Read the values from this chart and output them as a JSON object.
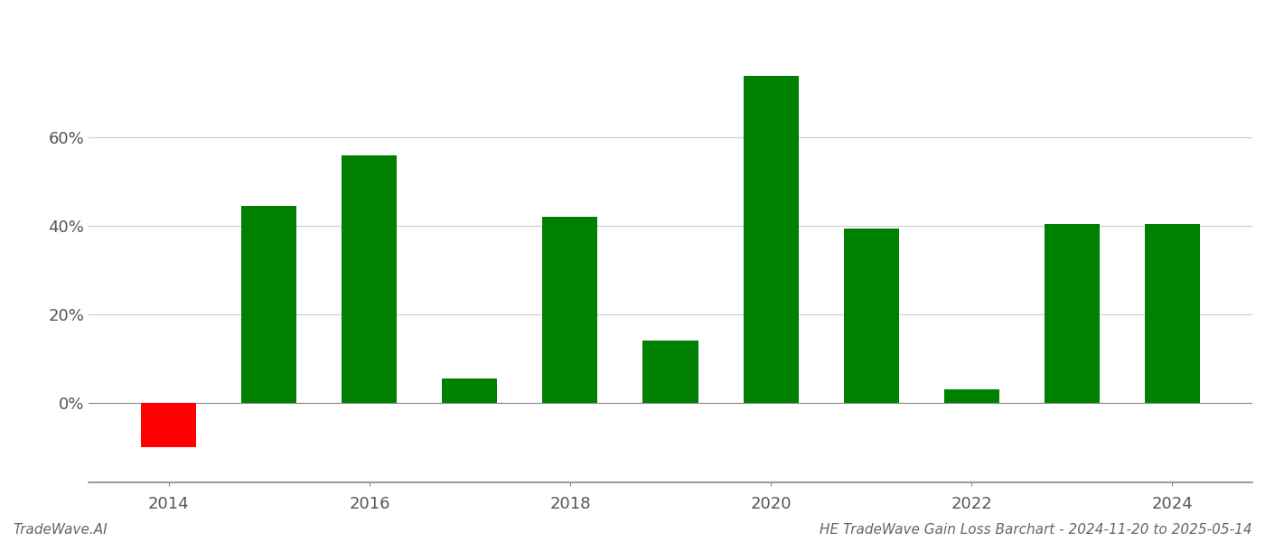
{
  "years": [
    2014,
    2015,
    2016,
    2017,
    2018,
    2019,
    2020,
    2021,
    2022,
    2023,
    2024
  ],
  "values": [
    -10.0,
    44.5,
    56.0,
    5.5,
    42.0,
    14.0,
    74.0,
    39.5,
    3.0,
    40.5,
    40.5
  ],
  "colors": [
    "#ff0000",
    "#008000",
    "#008000",
    "#008000",
    "#008000",
    "#008000",
    "#008000",
    "#008000",
    "#008000",
    "#008000",
    "#008000"
  ],
  "bar_width": 0.55,
  "xlim_min": 2013.2,
  "xlim_max": 2024.8,
  "ylim_min": -18,
  "ylim_max": 85,
  "yticks": [
    0,
    20,
    40,
    60
  ],
  "ytick_labels": [
    "0%",
    "20%",
    "40%",
    "60%"
  ],
  "xticks": [
    2014,
    2016,
    2018,
    2020,
    2022,
    2024
  ],
  "xtick_labels": [
    "2014",
    "2016",
    "2018",
    "2020",
    "2022",
    "2024"
  ],
  "grid_color": "#cccccc",
  "background_color": "#ffffff",
  "footer_left": "TradeWave.AI",
  "footer_right": "HE TradeWave Gain Loss Barchart - 2024-11-20 to 2025-05-14",
  "footer_fontsize": 11,
  "tick_fontsize": 13,
  "spine_color": "#888888"
}
